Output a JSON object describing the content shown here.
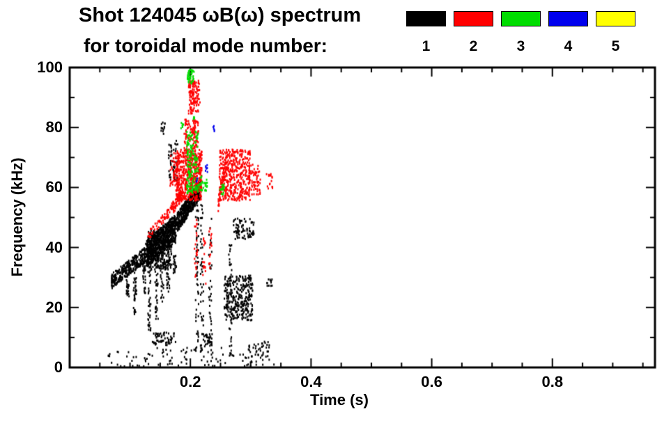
{
  "header": {
    "title_line1": "Shot 124045 ωB(ω) spectrum",
    "title_line2": "for toroidal mode number:"
  },
  "legend": {
    "items": [
      {
        "label": "1",
        "color": "#000000"
      },
      {
        "label": "2",
        "color": "#ff0000"
      },
      {
        "label": "3",
        "color": "#00dd00"
      },
      {
        "label": "4",
        "color": "#0000ee"
      },
      {
        "label": "5",
        "color": "#ffff00"
      }
    ]
  },
  "chart_data": {
    "type": "scatter",
    "title": "Shot 124045 ωB(ω) spectrum for toroidal mode number: 1 2 3 4 5",
    "xlabel": "Time (s)",
    "ylabel": "Frequency (kHz)",
    "xlim": [
      0.0,
      0.97
    ],
    "ylim": [
      0,
      100
    ],
    "grid": false,
    "legend_position": "top-right",
    "xticks": {
      "major": [
        0.2,
        0.4,
        0.6,
        0.8
      ],
      "labels": [
        "0.2",
        "0.4",
        "0.6",
        "0.8"
      ],
      "minor_step": 0.05
    },
    "yticks": {
      "major": [
        0,
        20,
        40,
        60,
        80,
        100
      ],
      "labels": [
        "0",
        "20",
        "40",
        "60",
        "80",
        "100"
      ],
      "minor_step": 10
    },
    "series": [
      {
        "name": "toroidal mode n=1",
        "color": "#000000",
        "clusters": [
          {
            "type": "band",
            "t0": 0.068,
            "f0": 29,
            "t1": 0.125,
            "f1": 38,
            "spread": 2.5,
            "n": 320
          },
          {
            "type": "band",
            "t0": 0.125,
            "f0": 38,
            "t1": 0.175,
            "f1": 47,
            "spread": 4.5,
            "n": 650
          },
          {
            "type": "band",
            "t0": 0.175,
            "f0": 48,
            "t1": 0.216,
            "f1": 60,
            "spread": 3.2,
            "n": 480
          },
          {
            "type": "blob",
            "t0": 0.128,
            "t1": 0.168,
            "f0": 33,
            "f1": 46,
            "n": 320
          },
          {
            "type": "vline",
            "t": 0.095,
            "f0": 24,
            "f1": 31,
            "n": 22
          },
          {
            "type": "vline",
            "t": 0.107,
            "f0": 17,
            "f1": 32,
            "n": 36
          },
          {
            "type": "vline",
            "t": 0.122,
            "f0": 25,
            "f1": 37,
            "n": 30
          },
          {
            "type": "vline",
            "t": 0.131,
            "f0": 12,
            "f1": 38,
            "n": 42
          },
          {
            "type": "vline",
            "t": 0.143,
            "f0": 8,
            "f1": 40,
            "n": 48
          },
          {
            "type": "vline",
            "t": 0.152,
            "f0": 22,
            "f1": 42,
            "n": 36
          },
          {
            "type": "vline",
            "t": 0.162,
            "f0": 25,
            "f1": 44,
            "n": 36
          },
          {
            "type": "vline",
            "t": 0.173,
            "f0": 30,
            "f1": 48,
            "n": 30
          },
          {
            "type": "vline",
            "t": 0.21,
            "f0": 5,
            "f1": 56,
            "n": 55
          },
          {
            "type": "vline",
            "t": 0.218,
            "f0": 3,
            "f1": 55,
            "n": 48
          },
          {
            "type": "vline",
            "t": 0.232,
            "f0": 6,
            "f1": 50,
            "n": 40
          },
          {
            "type": "vline",
            "t": 0.265,
            "f0": 4,
            "f1": 44,
            "n": 40
          },
          {
            "type": "blob",
            "t0": 0.162,
            "t1": 0.178,
            "f0": 62,
            "f1": 76,
            "n": 55
          },
          {
            "type": "blob",
            "t0": 0.15,
            "t1": 0.158,
            "f0": 78,
            "f1": 82,
            "n": 12
          },
          {
            "type": "blob",
            "t0": 0.255,
            "t1": 0.302,
            "f0": 16,
            "f1": 31,
            "n": 300
          },
          {
            "type": "blob",
            "t0": 0.268,
            "t1": 0.305,
            "f0": 43,
            "f1": 50,
            "n": 85
          },
          {
            "type": "blob",
            "t0": 0.06,
            "t1": 0.34,
            "f0": 0.5,
            "f1": 7,
            "n": 110
          },
          {
            "type": "blob",
            "t0": 0.135,
            "t1": 0.175,
            "f0": 7.5,
            "f1": 12,
            "n": 55
          },
          {
            "type": "blob",
            "t0": 0.22,
            "t1": 0.235,
            "f0": 7,
            "f1": 12,
            "n": 26
          },
          {
            "type": "blob",
            "t0": 0.295,
            "t1": 0.33,
            "f0": 4,
            "f1": 9,
            "n": 32
          },
          {
            "type": "blob",
            "t0": 0.325,
            "t1": 0.335,
            "f0": 27,
            "f1": 30,
            "n": 12
          }
        ]
      },
      {
        "name": "toroidal mode n=2",
        "color": "#ff0000",
        "clusters": [
          {
            "type": "band",
            "t0": 0.128,
            "f0": 44,
            "t1": 0.168,
            "f1": 53,
            "spread": 1.5,
            "n": 55
          },
          {
            "type": "band",
            "t0": 0.168,
            "f0": 53,
            "t1": 0.185,
            "f1": 58,
            "spread": 2,
            "n": 70
          },
          {
            "type": "blob",
            "t0": 0.175,
            "t1": 0.218,
            "f0": 56,
            "f1": 73,
            "n": 520
          },
          {
            "type": "blob",
            "t0": 0.165,
            "t1": 0.178,
            "f0": 60,
            "f1": 72,
            "n": 45
          },
          {
            "type": "blob",
            "t0": 0.188,
            "t1": 0.212,
            "f0": 73,
            "f1": 83,
            "n": 110
          },
          {
            "type": "blob",
            "t0": 0.196,
            "t1": 0.215,
            "f0": 85,
            "f1": 96,
            "n": 120
          },
          {
            "type": "vline",
            "t": 0.208,
            "f0": 30,
            "f1": 50,
            "n": 22
          },
          {
            "type": "vline",
            "t": 0.222,
            "f0": 28,
            "f1": 45,
            "n": 18
          },
          {
            "type": "vline",
            "t": 0.232,
            "f0": 33,
            "f1": 48,
            "n": 15
          },
          {
            "type": "band",
            "t0": 0.245,
            "f0": 55,
            "t1": 0.26,
            "f1": 70,
            "spread": 3,
            "n": 70
          },
          {
            "type": "blob",
            "t0": 0.247,
            "t1": 0.298,
            "f0": 56,
            "f1": 73,
            "n": 420
          },
          {
            "type": "blob",
            "t0": 0.298,
            "t1": 0.315,
            "f0": 58,
            "f1": 68,
            "n": 55
          },
          {
            "type": "blob",
            "t0": 0.325,
            "t1": 0.335,
            "f0": 60,
            "f1": 65,
            "n": 16
          }
        ]
      },
      {
        "name": "toroidal mode n=3",
        "color": "#00dd00",
        "clusters": [
          {
            "type": "blob",
            "t0": 0.193,
            "t1": 0.212,
            "f0": 58,
            "f1": 79,
            "n": 150
          },
          {
            "type": "blob",
            "t0": 0.194,
            "t1": 0.205,
            "f0": 95,
            "f1": 100,
            "n": 45
          },
          {
            "type": "blob",
            "t0": 0.213,
            "t1": 0.227,
            "f0": 59,
            "f1": 64,
            "n": 30
          },
          {
            "type": "blob",
            "t0": 0.248,
            "t1": 0.255,
            "f0": 58,
            "f1": 62,
            "n": 15
          },
          {
            "type": "blob",
            "t0": 0.204,
            "t1": 0.208,
            "f0": 83,
            "f1": 85,
            "n": 5
          },
          {
            "type": "blob",
            "t0": 0.183,
            "t1": 0.188,
            "f0": 79,
            "f1": 82,
            "n": 6
          }
        ]
      },
      {
        "name": "toroidal mode n=4",
        "color": "#0000ee",
        "clusters": [
          {
            "type": "blob",
            "t0": 0.223,
            "t1": 0.228,
            "f0": 65,
            "f1": 68,
            "n": 7
          },
          {
            "type": "blob",
            "t0": 0.236,
            "t1": 0.239,
            "f0": 79,
            "f1": 81,
            "n": 5
          },
          {
            "type": "blob",
            "t0": 0.208,
            "t1": 0.211,
            "f0": 62,
            "f1": 64,
            "n": 4
          }
        ]
      },
      {
        "name": "toroidal mode n=5",
        "color": "#ffff00",
        "clusters": []
      }
    ]
  }
}
